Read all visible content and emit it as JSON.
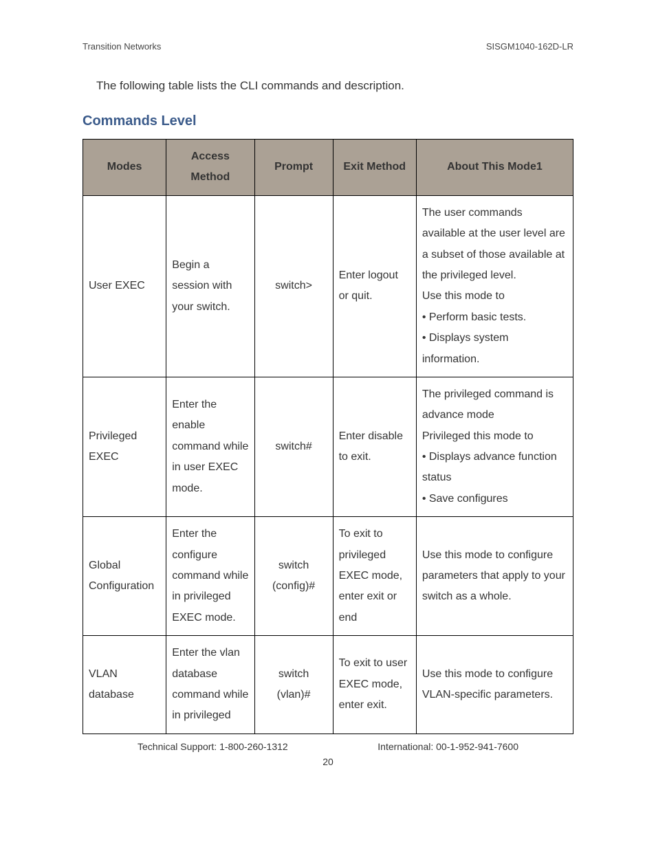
{
  "header": {
    "left": "Transition Networks",
    "right": "SISGM1040-162D-LR"
  },
  "intro": "The following table lists the CLI commands and description.",
  "section_title": "Commands Level",
  "table": {
    "columns": {
      "modes": "Modes",
      "access": "Access Method",
      "prompt": "Prompt",
      "exit": "Exit Method",
      "about": "About This Mode1"
    },
    "rows": [
      {
        "modes": "User EXEC",
        "access": "Begin a session with your switch.",
        "prompt": "switch>",
        "exit": "Enter logout or quit.",
        "about": "The user commands available at the user level are a subset of those available at the privileged level.\nUse this mode to\n• Perform basic tests.\n• Displays system information."
      },
      {
        "modes": "Privileged EXEC",
        "access": "Enter the enable command while in user EXEC mode.",
        "prompt": "switch#",
        "exit": "Enter disable to exit.",
        "about": "The privileged command is advance mode\nPrivileged this mode to\n• Displays advance function status\n• Save configures"
      },
      {
        "modes": "Global Configuration",
        "access": "Enter the configure command while in privileged EXEC mode.",
        "prompt": "switch (config)#",
        "exit": "To exit to privileged EXEC mode, enter exit or end",
        "about": "Use this mode to configure parameters that apply to your switch as a whole."
      },
      {
        "modes": "VLAN database",
        "access": "Enter the vlan database command while in privileged",
        "prompt": "switch (vlan)#",
        "exit": "To exit to user EXEC mode, enter exit.",
        "about": "Use this mode to configure VLAN-specific parameters."
      }
    ]
  },
  "footer": {
    "left": "Technical Support: 1-800-260-1312",
    "right": "International: 00-1-952-941-7600",
    "page_number": "20"
  },
  "style": {
    "header_bg": "#aba195",
    "border_color": "#000000",
    "title_color": "#3a5a8a",
    "body_font_size": 16,
    "line_height": 1.9
  }
}
